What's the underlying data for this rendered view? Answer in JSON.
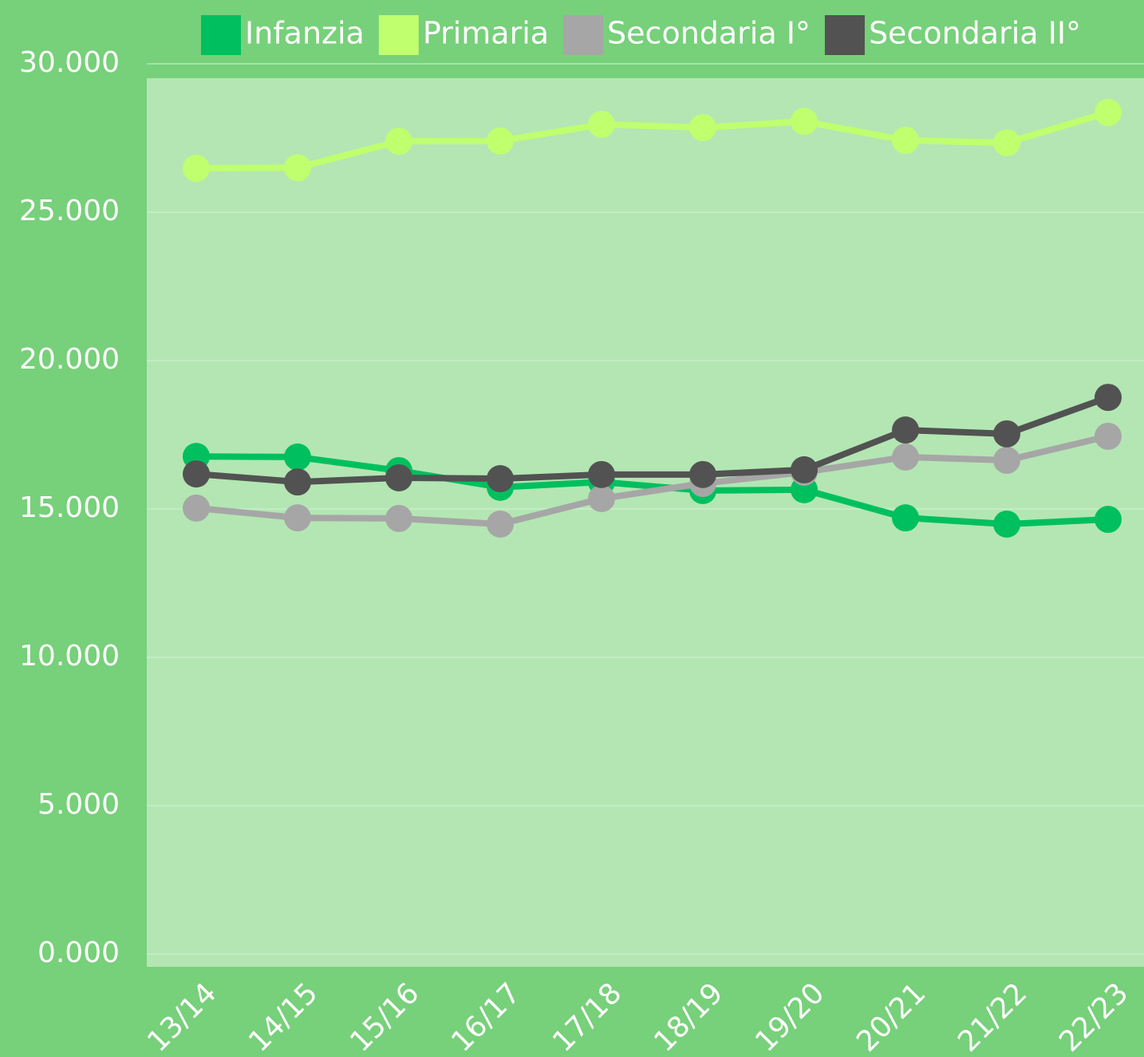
{
  "chart_data": {
    "type": "line",
    "categories": [
      "13/14",
      "14/15",
      "15/16",
      "16/17",
      "17/18",
      "18/19",
      "19/20",
      "20/21",
      "21/22",
      "22/23"
    ],
    "series": [
      {
        "name": "Infanzia",
        "color": "#00bf5f",
        "values": [
          16770,
          16750,
          16290,
          15730,
          15910,
          15620,
          15650,
          14700,
          14490,
          14650
        ]
      },
      {
        "name": "Primaria",
        "color": "#c0ff6e",
        "values": [
          26480,
          26500,
          27390,
          27400,
          27960,
          27850,
          28060,
          27420,
          27340,
          28360
        ]
      },
      {
        "name": "Secondaria I°",
        "color": "#a6a6a6",
        "values": [
          15030,
          14700,
          14680,
          14490,
          15350,
          15860,
          16240,
          16750,
          16640,
          17450
        ]
      },
      {
        "name": "Secondaria II°",
        "color": "#525252",
        "values": [
          16180,
          15910,
          16050,
          16020,
          16160,
          16160,
          16320,
          17660,
          17530,
          18760
        ]
      }
    ],
    "ylim": [
      0,
      30000
    ],
    "yticks": [
      {
        "value": 0,
        "label": "0.000"
      },
      {
        "value": 5000,
        "label": "5.000"
      },
      {
        "value": 10000,
        "label": "10.000"
      },
      {
        "value": 15000,
        "label": "15.000"
      },
      {
        "value": 20000,
        "label": "20.000"
      },
      {
        "value": 25000,
        "label": "25.000"
      },
      {
        "value": 30000,
        "label": "30.000"
      }
    ],
    "grid": true,
    "legend": "top"
  }
}
